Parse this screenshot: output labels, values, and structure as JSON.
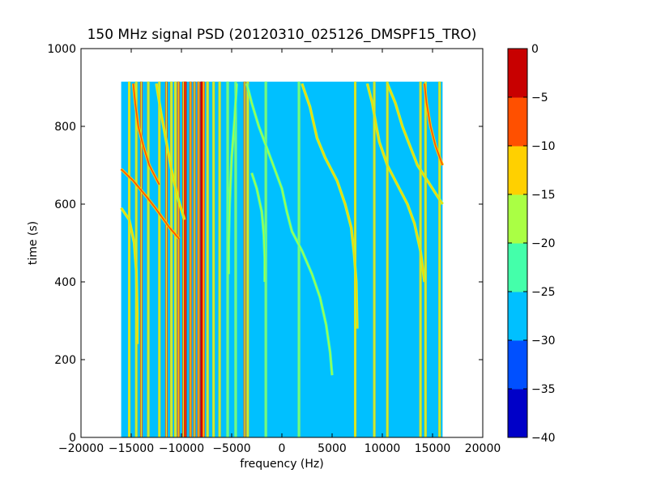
{
  "chart_data": {
    "type": "heatmap",
    "title": "150 MHz signal PSD (20120310_025126_DMSPF15_TRO)",
    "xlabel": "frequency (Hz)",
    "ylabel": "time (s)",
    "xlim": [
      -20000,
      20000
    ],
    "ylim": [
      0,
      1000
    ],
    "xticks": [
      -20000,
      -15000,
      -10000,
      -5000,
      0,
      5000,
      10000,
      15000,
      20000
    ],
    "xtick_labels": [
      "−20000",
      "−15000",
      "−10000",
      "−5000",
      "0",
      "5000",
      "10000",
      "15000",
      "20000"
    ],
    "yticks": [
      0,
      200,
      400,
      600,
      800,
      1000
    ],
    "ytick_labels": [
      "0",
      "200",
      "400",
      "600",
      "800",
      "1000"
    ],
    "grid": false,
    "data_extent": {
      "freq": [
        -16000,
        16000
      ],
      "time": [
        0,
        915
      ]
    },
    "background_level": -28,
    "colorbar": {
      "levels": [
        -40,
        -35,
        -30,
        -25,
        -20,
        -15,
        -10,
        -5,
        0
      ],
      "tick_labels": [
        "−40",
        "−35",
        "−30",
        "−25",
        "−20",
        "−15",
        "−10",
        "−5",
        "0"
      ],
      "colors": [
        "#0000c8",
        "#0050ff",
        "#00c0ff",
        "#44ffaa",
        "#aaff44",
        "#ffd000",
        "#ff5000",
        "#c80000"
      ]
    },
    "vertical_lines": [
      {
        "freq": -15200,
        "level": -18
      },
      {
        "freq": -14500,
        "level": -20
      },
      {
        "freq": -14000,
        "level": -16
      },
      {
        "freq": -13300,
        "level": -20
      },
      {
        "freq": -12200,
        "level": -18
      },
      {
        "freq": -11500,
        "level": -16
      },
      {
        "freq": -11000,
        "level": -18
      },
      {
        "freq": -10600,
        "level": -20
      },
      {
        "freq": -10300,
        "level": -13
      },
      {
        "freq": -9800,
        "level": -16
      },
      {
        "freq": -9600,
        "level": -10
      },
      {
        "freq": -9100,
        "level": -13
      },
      {
        "freq": -8700,
        "level": -16
      },
      {
        "freq": -8300,
        "level": -13
      },
      {
        "freq": -8000,
        "level": -3
      },
      {
        "freq": -7800,
        "level": -13
      },
      {
        "freq": -7400,
        "level": -18
      },
      {
        "freq": -6800,
        "level": -20
      },
      {
        "freq": -6200,
        "level": -18
      },
      {
        "freq": -5400,
        "level": -22
      },
      {
        "freq": -4600,
        "level": -22
      },
      {
        "freq": -3700,
        "level": -16
      },
      {
        "freq": -3400,
        "level": -18
      },
      {
        "freq": -1600,
        "level": -22
      },
      {
        "freq": 1700,
        "level": -22
      },
      {
        "freq": 7300,
        "level": -18
      },
      {
        "freq": 9200,
        "level": -18
      },
      {
        "freq": 10500,
        "level": -20
      },
      {
        "freq": 13800,
        "level": -20
      },
      {
        "freq": 14300,
        "level": -18
      },
      {
        "freq": 15700,
        "level": -20
      }
    ],
    "curved_tracks": [
      {
        "level": -8,
        "points": [
          [
            -16000,
            690
          ],
          [
            -14800,
            660
          ],
          [
            -13500,
            620
          ],
          [
            -12600,
            590
          ],
          [
            -11200,
            540
          ],
          [
            -10200,
            510
          ]
        ]
      },
      {
        "level": -14,
        "points": [
          [
            -16000,
            590
          ],
          [
            -15200,
            560
          ],
          [
            -14700,
            500
          ],
          [
            -14500,
            430
          ],
          [
            -14400,
            320
          ],
          [
            -14400,
            240
          ]
        ]
      },
      {
        "level": -10,
        "points": [
          [
            -14800,
            910
          ],
          [
            -14600,
            860
          ],
          [
            -14300,
            800
          ],
          [
            -13800,
            750
          ],
          [
            -13200,
            700
          ],
          [
            -12200,
            650
          ]
        ]
      },
      {
        "level": -15,
        "points": [
          [
            -12500,
            910
          ],
          [
            -12000,
            830
          ],
          [
            -11500,
            760
          ],
          [
            -11000,
            690
          ],
          [
            -10400,
            620
          ],
          [
            -9700,
            560
          ]
        ]
      },
      {
        "level": -18,
        "points": [
          [
            -4500,
            910
          ],
          [
            -4700,
            820
          ],
          [
            -5000,
            720
          ],
          [
            -5200,
            600
          ],
          [
            -5300,
            500
          ],
          [
            -5300,
            420
          ]
        ]
      },
      {
        "level": -16,
        "points": [
          [
            -3500,
            910
          ],
          [
            -3000,
            860
          ],
          [
            -2300,
            800
          ],
          [
            -1000,
            710
          ],
          [
            0,
            640
          ],
          [
            500,
            580
          ],
          [
            1000,
            530
          ],
          [
            2000,
            480
          ],
          [
            3000,
            420
          ],
          [
            3800,
            360
          ],
          [
            4400,
            290
          ],
          [
            4800,
            220
          ],
          [
            5000,
            160
          ]
        ]
      },
      {
        "level": -14,
        "points": [
          [
            2000,
            910
          ],
          [
            2800,
            850
          ],
          [
            3500,
            770
          ],
          [
            4300,
            720
          ],
          [
            5500,
            660
          ],
          [
            6300,
            600
          ],
          [
            6900,
            540
          ],
          [
            7200,
            470
          ],
          [
            7400,
            400
          ],
          [
            7500,
            280
          ]
        ]
      },
      {
        "level": -16,
        "points": [
          [
            -3000,
            680
          ],
          [
            -2500,
            640
          ],
          [
            -2000,
            580
          ],
          [
            -1800,
            520
          ],
          [
            -1700,
            460
          ],
          [
            -1700,
            400
          ]
        ]
      },
      {
        "level": -15,
        "points": [
          [
            8500,
            910
          ],
          [
            9000,
            860
          ],
          [
            9400,
            800
          ],
          [
            9700,
            760
          ],
          [
            10500,
            700
          ],
          [
            11500,
            650
          ],
          [
            12500,
            600
          ],
          [
            13200,
            550
          ],
          [
            13800,
            480
          ],
          [
            14200,
            400
          ]
        ]
      },
      {
        "level": -12,
        "points": [
          [
            10500,
            910
          ],
          [
            11300,
            860
          ],
          [
            12000,
            800
          ],
          [
            12600,
            760
          ],
          [
            13500,
            700
          ],
          [
            14500,
            660
          ],
          [
            15500,
            620
          ],
          [
            16000,
            600
          ]
        ]
      },
      {
        "level": -8,
        "points": [
          [
            14200,
            910
          ],
          [
            14400,
            860
          ],
          [
            14800,
            800
          ],
          [
            15300,
            750
          ],
          [
            16000,
            700
          ]
        ]
      }
    ]
  }
}
